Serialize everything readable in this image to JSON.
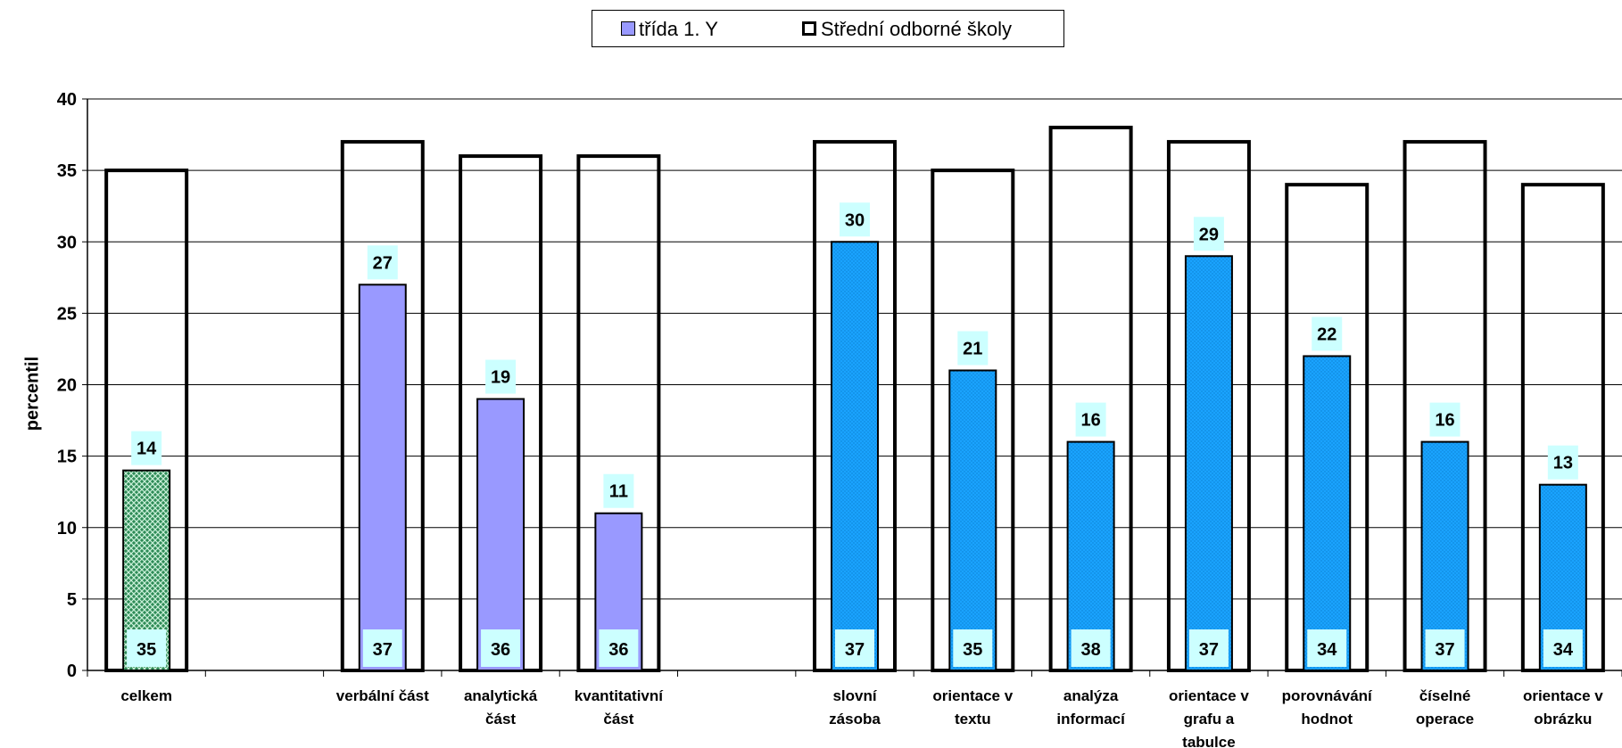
{
  "chart_data": {
    "type": "bar",
    "ylabel": "percentil",
    "xlabel": "",
    "ylim": [
      0,
      40
    ],
    "yticks": [
      "0",
      "5",
      "10",
      "15",
      "20",
      "25",
      "30",
      "35",
      "40"
    ],
    "grid": true,
    "legend_position": "top",
    "categories": [
      {
        "label": [
          "celkem"
        ],
        "group": 0
      },
      {
        "label": [],
        "group": -1
      },
      {
        "label": [
          "verbální část"
        ],
        "group": 1
      },
      {
        "label": [
          "analytická",
          "část"
        ],
        "group": 1
      },
      {
        "label": [
          "kvantitativní",
          "část"
        ],
        "group": 1
      },
      {
        "label": [],
        "group": -1
      },
      {
        "label": [
          "slovní",
          "zásoba"
        ],
        "group": 2
      },
      {
        "label": [
          "orientace v",
          "textu"
        ],
        "group": 2
      },
      {
        "label": [
          "analýza",
          "informací"
        ],
        "group": 2
      },
      {
        "label": [
          "orientace v",
          "grafu a",
          "tabulce"
        ],
        "group": 2
      },
      {
        "label": [
          "porovnávání",
          "hodnot"
        ],
        "group": 2
      },
      {
        "label": [
          "číselné",
          "operace"
        ],
        "group": 2
      },
      {
        "label": [
          "orientace v",
          "obrázku"
        ],
        "group": 2
      }
    ],
    "series": [
      {
        "name": "třída  1. Y",
        "values": [
          14,
          null,
          27,
          19,
          11,
          null,
          30,
          21,
          16,
          29,
          22,
          16,
          13
        ]
      },
      {
        "name": "Střední odborné školy",
        "values": [
          35,
          null,
          37,
          36,
          36,
          null,
          37,
          35,
          38,
          37,
          34,
          37,
          34
        ]
      }
    ],
    "colors": {
      "group0": "#2e8b57",
      "group1": "#9999ff",
      "group2": "#1aa3ff",
      "outline": "#000000",
      "label_bg": "#ccffff",
      "grid": "#000000"
    }
  }
}
